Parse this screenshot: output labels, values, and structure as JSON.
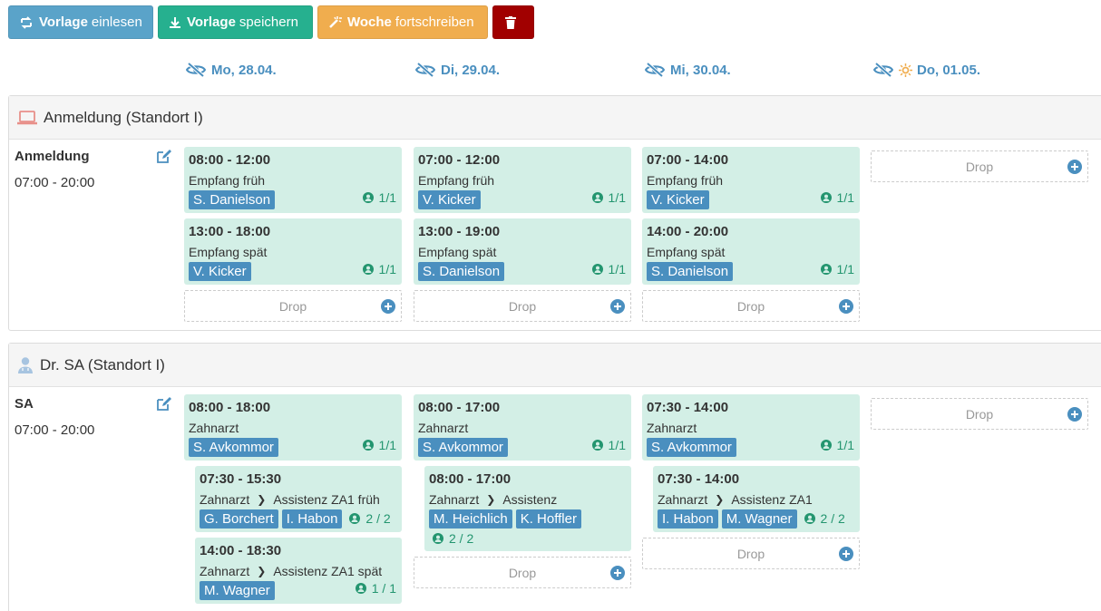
{
  "toolbar": {
    "load_bold": "Vorlage",
    "load_rest": "einlesen",
    "save_bold": "Vorlage",
    "save_rest": "speichern",
    "week_bold": "Woche",
    "week_rest": "fortschreiben"
  },
  "days": [
    {
      "label": "Mo, 28.04."
    },
    {
      "label": "Di, 29.04."
    },
    {
      "label": "Mi, 30.04."
    },
    {
      "label": "Do, 01.05."
    }
  ],
  "drop_label": "Drop",
  "sections": [
    {
      "title": "Anmeldung (Standort I)",
      "row_name": "Anmeldung",
      "row_time": "07:00 - 20:00",
      "cols": [
        {
          "shifts": [
            {
              "time": "08:00 - 12:00",
              "role": "Empfang früh",
              "staff": [
                "S. Danielson"
              ],
              "count": "1/1"
            },
            {
              "time": "13:00 - 18:00",
              "role": "Empfang spät",
              "staff": [
                "V. Kicker"
              ],
              "count": "1/1"
            }
          ]
        },
        {
          "shifts": [
            {
              "time": "07:00 - 12:00",
              "role": "Empfang früh",
              "staff": [
                "V. Kicker"
              ],
              "count": "1/1"
            },
            {
              "time": "13:00 - 19:00",
              "role": "Empfang spät",
              "staff": [
                "S. Danielson"
              ],
              "count": "1/1"
            }
          ]
        },
        {
          "shifts": [
            {
              "time": "07:00 - 14:00",
              "role": "Empfang früh",
              "staff": [
                "V. Kicker"
              ],
              "count": "1/1"
            },
            {
              "time": "14:00 - 20:00",
              "role": "Empfang spät",
              "staff": [
                "S. Danielson"
              ],
              "count": "1/1"
            }
          ]
        }
      ]
    },
    {
      "title": "Dr. SA (Standort I)",
      "row_name": "SA",
      "row_time": "07:00 - 20:00",
      "cols": [
        {
          "shift": {
            "time": "08:00 - 18:00",
            "role": "Zahnarzt",
            "staff": [
              "S. Avkommor"
            ],
            "count": "1/1"
          },
          "subs": [
            {
              "time": "07:30 - 15:30",
              "role": "Zahnarzt",
              "subrole": "Assistenz ZA1 früh",
              "staff": [
                "G. Borchert",
                "I. Habon"
              ],
              "count": "2 / 2"
            },
            {
              "time": "14:00 - 18:30",
              "role": "Zahnarzt",
              "subrole": "Assistenz ZA1 spät",
              "staff": [
                "M. Wagner"
              ],
              "count": "1 / 1"
            }
          ]
        },
        {
          "shift": {
            "time": "08:00 - 17:00",
            "role": "Zahnarzt",
            "staff": [
              "S. Avkommor"
            ],
            "count": "1/1"
          },
          "subs": [
            {
              "time": "08:00 - 17:00",
              "role": "Zahnarzt",
              "subrole": "Assistenz",
              "staff": [
                "M. Heichlich",
                "K. Hoffler"
              ],
              "count": "2 / 2"
            }
          ]
        },
        {
          "shift": {
            "time": "07:30 - 14:00",
            "role": "Zahnarzt",
            "staff": [
              "S. Avkommor"
            ],
            "count": "1/1"
          },
          "subs": [
            {
              "time": "07:30 - 14:00",
              "role": "Zahnarzt",
              "subrole": "Assistenz ZA1",
              "staff": [
                "I. Habon",
                "M. Wagner"
              ],
              "count": "2 / 2"
            }
          ]
        }
      ]
    }
  ],
  "colors": {
    "primary": "#4a8fbf",
    "success": "#26b08f",
    "warning": "#f0ad4e",
    "danger": "#a10000",
    "card": "#d3efe6"
  }
}
